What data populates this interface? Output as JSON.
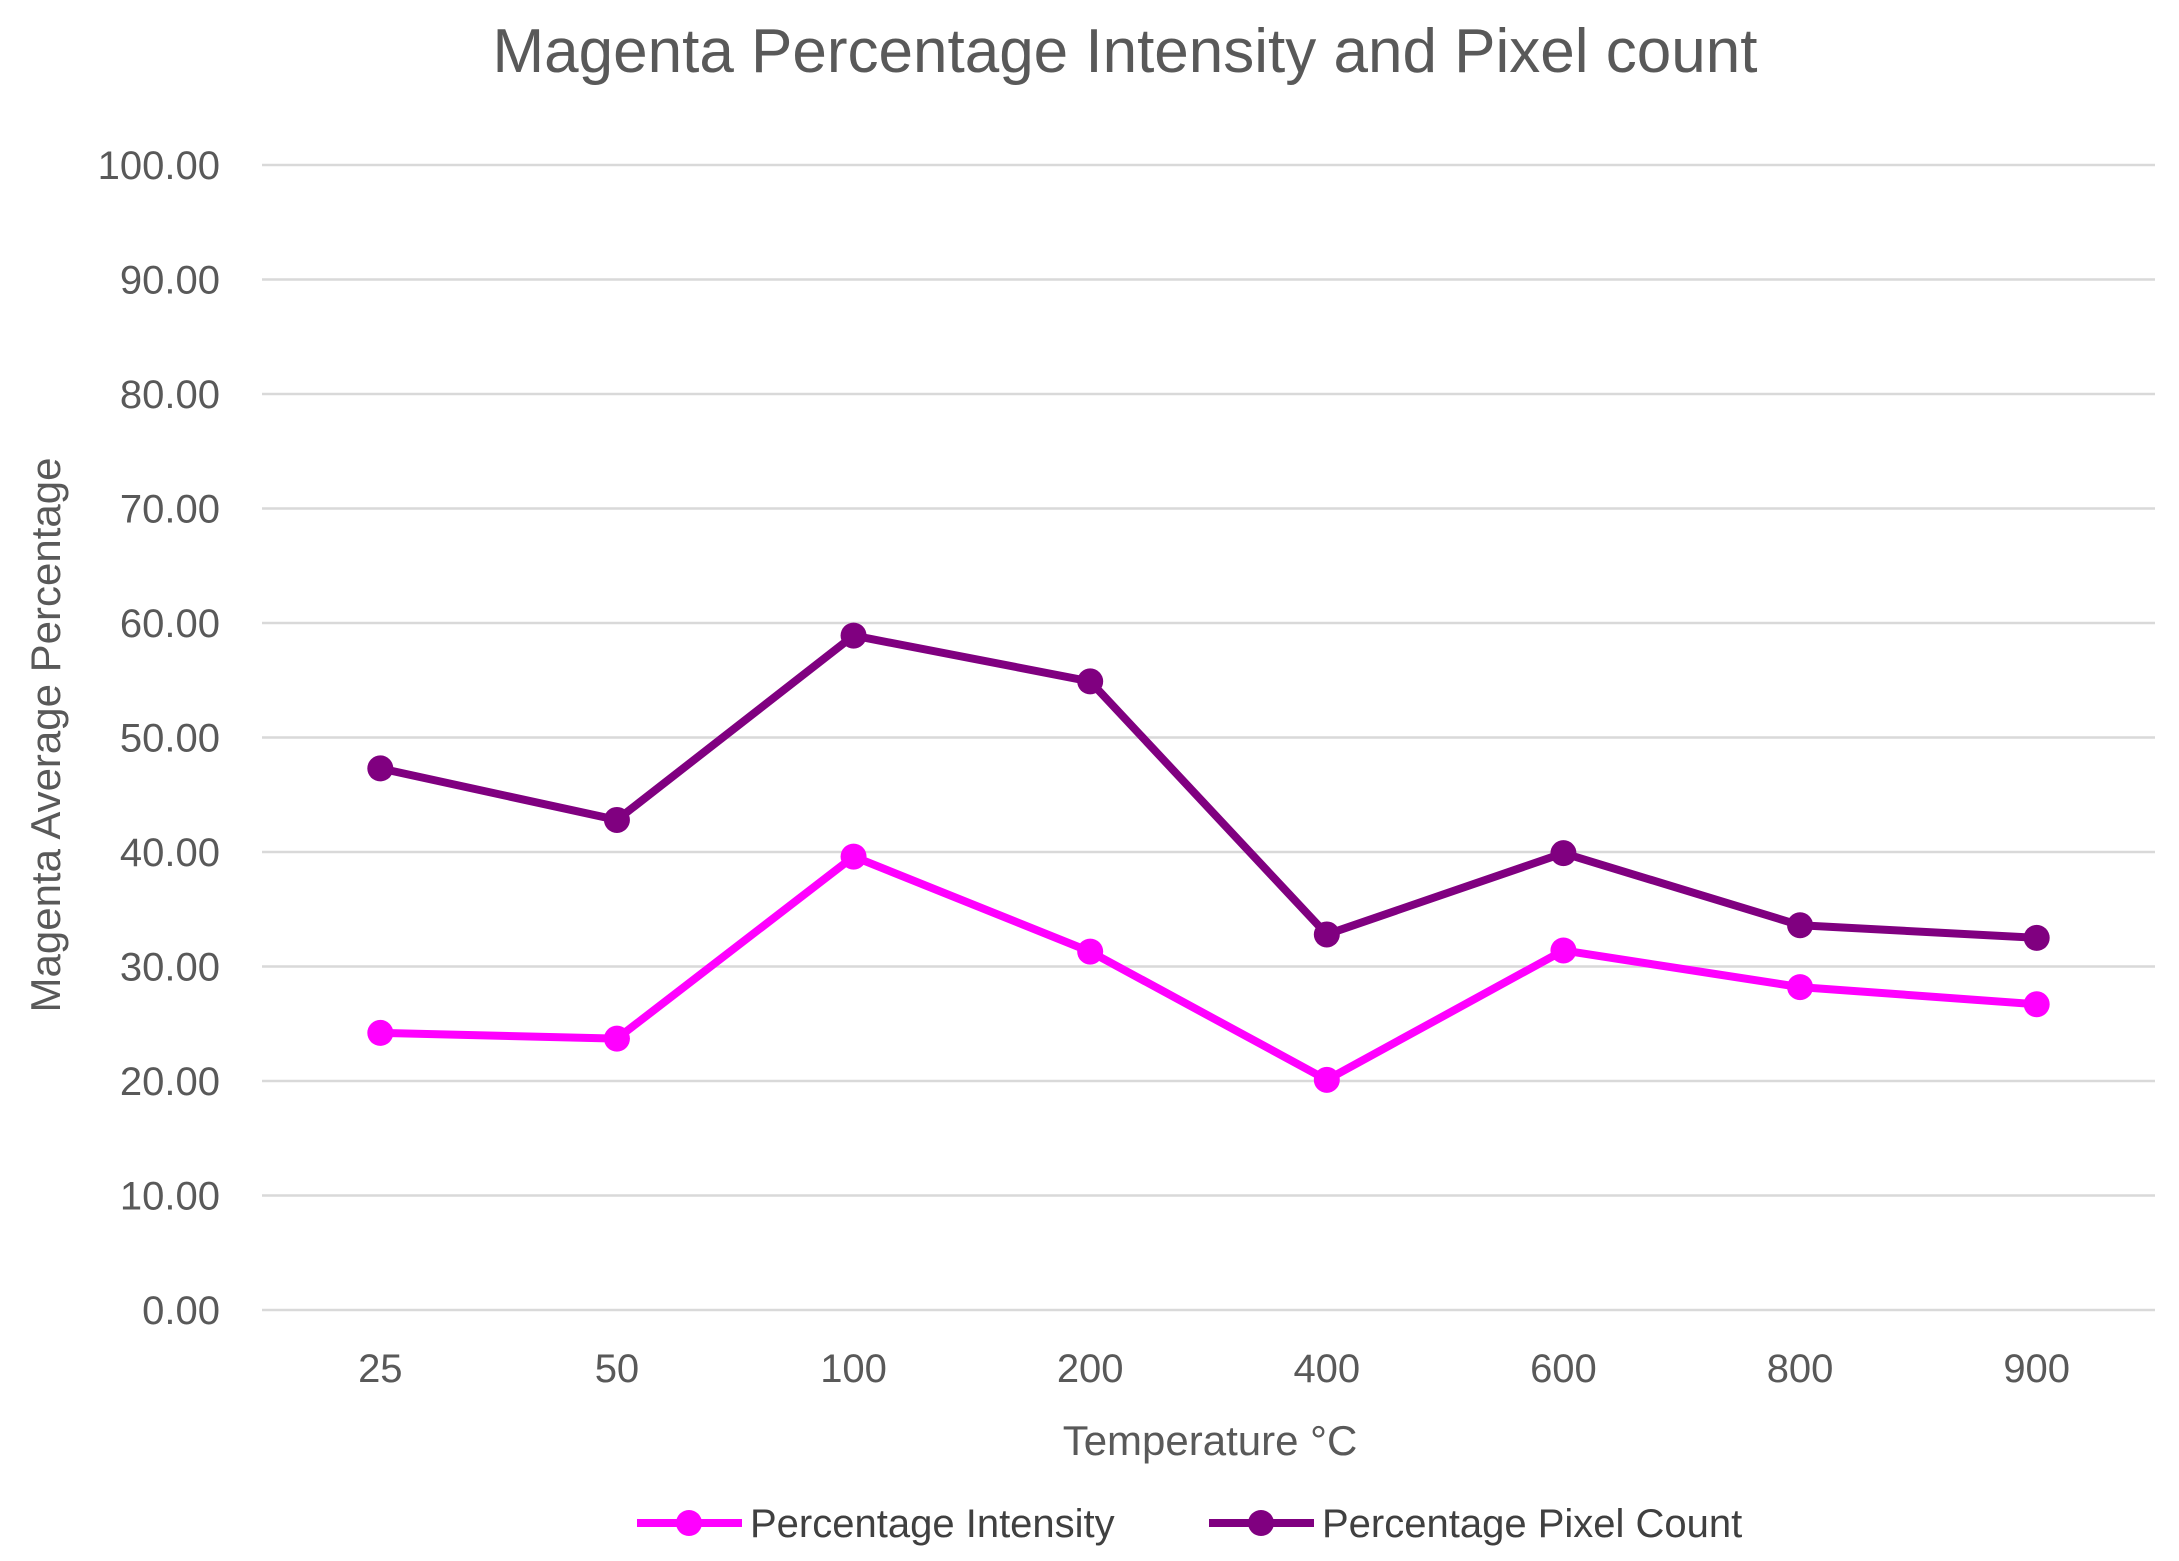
{
  "chart_data": {
    "type": "line",
    "title": "Magenta Percentage Intensity and Pixel count",
    "xlabel": "Temperature °C",
    "ylabel": "Magenta Average Percentage",
    "categories": [
      "25",
      "50",
      "100",
      "200",
      "400",
      "600",
      "800",
      "900"
    ],
    "ylim": [
      0,
      100
    ],
    "yticks": [
      "0.00",
      "10.00",
      "20.00",
      "30.00",
      "40.00",
      "50.00",
      "60.00",
      "70.00",
      "80.00",
      "90.00",
      "100.00"
    ],
    "grid": true,
    "legend_position": "bottom",
    "series": [
      {
        "name": "Percentage Intensity",
        "color": "#ff00ff",
        "values": [
          24.2,
          23.7,
          39.6,
          31.3,
          20.1,
          31.4,
          28.2,
          26.7
        ]
      },
      {
        "name": "Percentage Pixel Count",
        "color": "#800080",
        "values": [
          47.3,
          42.8,
          58.9,
          54.9,
          32.8,
          39.9,
          33.6,
          32.5
        ]
      }
    ]
  }
}
